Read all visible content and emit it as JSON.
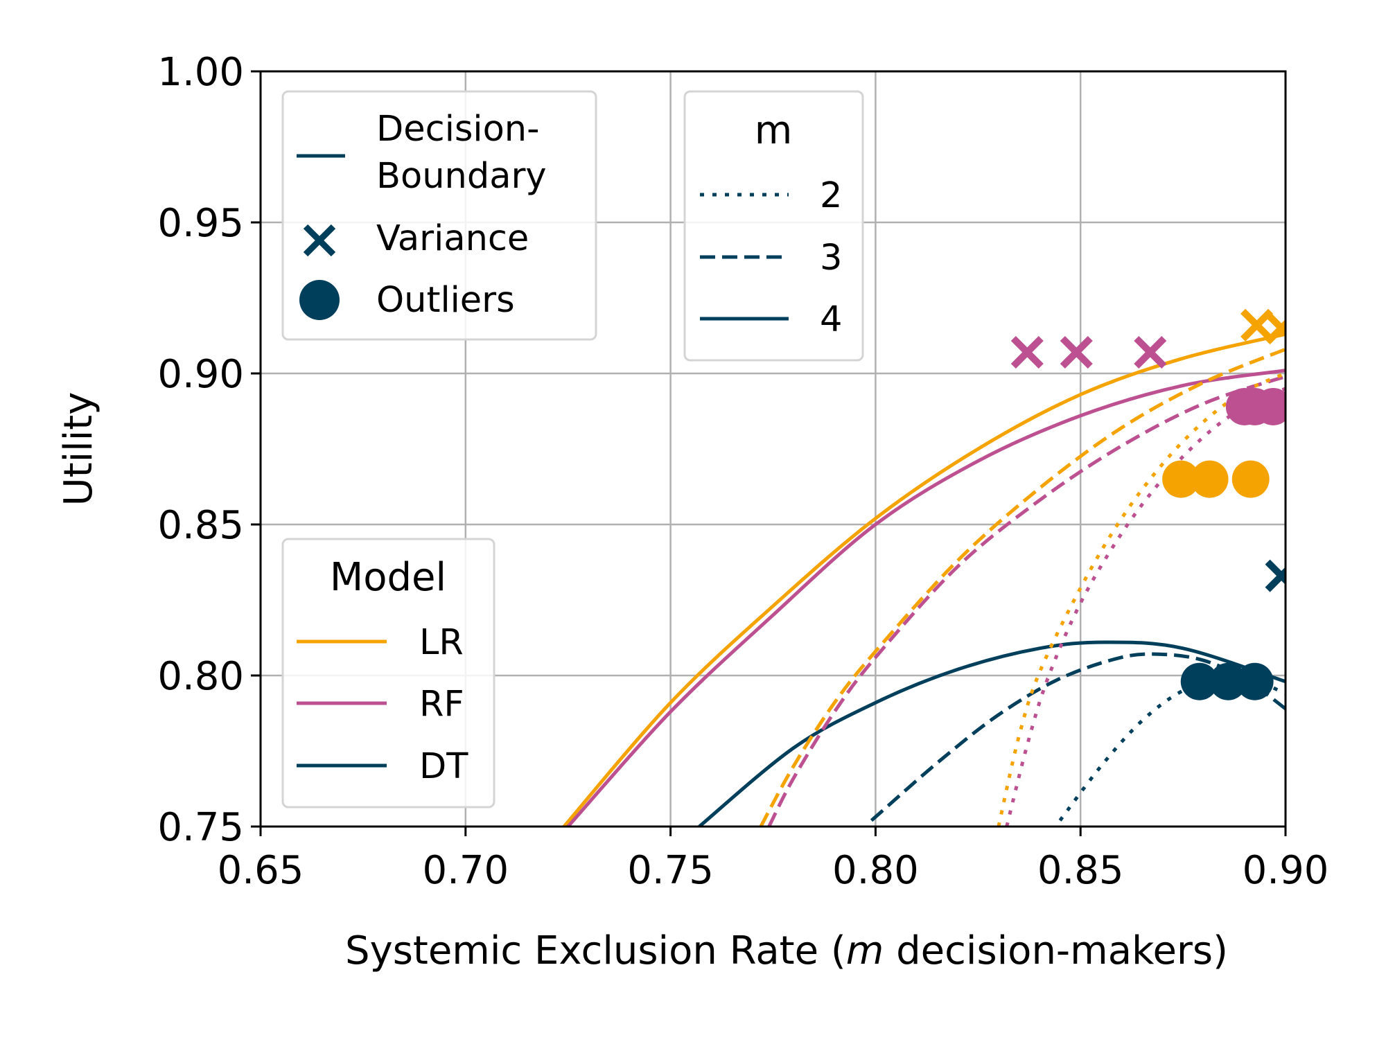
{
  "chart_data": {
    "type": "line",
    "xlabel": "Systemic Exclusion Rate (m decision-makers)",
    "xlabel_parts": {
      "before": "Systemic Exclusion Rate (",
      "italic": "m",
      "after": " decision-makers)"
    },
    "ylabel": "Utility",
    "xlim": [
      0.65,
      0.9
    ],
    "ylim": [
      0.75,
      1.0
    ],
    "xticks": [
      "0.65",
      "0.70",
      "0.75",
      "0.80",
      "0.85",
      "0.90"
    ],
    "yticks": [
      "0.75",
      "0.80",
      "0.85",
      "0.90",
      "0.95",
      "1.00"
    ],
    "grid": true,
    "colors": {
      "LR": "#f5a300",
      "RF": "#bc5090",
      "DT": "#003f5c",
      "grid": "#b0b0b0"
    },
    "legend_method": {
      "placement": "top-left",
      "entries": [
        {
          "label_lines": [
            "Decision-",
            "Boundary"
          ],
          "marker": "line"
        },
        {
          "label_lines": [
            "Variance"
          ],
          "marker": "x"
        },
        {
          "label_lines": [
            "Outliers"
          ],
          "marker": "circle"
        }
      ]
    },
    "legend_m": {
      "title": "m",
      "placement": "top-center",
      "entries": [
        {
          "label": "2",
          "style": "dotted"
        },
        {
          "label": "3",
          "style": "dashed"
        },
        {
          "label": "4",
          "style": "solid"
        }
      ]
    },
    "legend_model": {
      "title": "Model",
      "placement": "lower-left",
      "entries": [
        {
          "label": "LR",
          "color_key": "LR"
        },
        {
          "label": "RF",
          "color_key": "RF"
        },
        {
          "label": "DT",
          "color_key": "DT"
        }
      ]
    },
    "curves": [
      {
        "model": "LR",
        "m": 4,
        "style": "solid",
        "points": [
          [
            0.724,
            0.75
          ],
          [
            0.75,
            0.791
          ],
          [
            0.775,
            0.823
          ],
          [
            0.8,
            0.852
          ],
          [
            0.825,
            0.875
          ],
          [
            0.85,
            0.893
          ],
          [
            0.875,
            0.905
          ],
          [
            0.9,
            0.913
          ]
        ]
      },
      {
        "model": "RF",
        "m": 4,
        "style": "solid",
        "points": [
          [
            0.725,
            0.75
          ],
          [
            0.75,
            0.788
          ],
          [
            0.775,
            0.82
          ],
          [
            0.8,
            0.85
          ],
          [
            0.825,
            0.871
          ],
          [
            0.85,
            0.886
          ],
          [
            0.875,
            0.896
          ],
          [
            0.9,
            0.901
          ]
        ]
      },
      {
        "model": "DT",
        "m": 4,
        "style": "solid",
        "points": [
          [
            0.757,
            0.75
          ],
          [
            0.78,
            0.776
          ],
          [
            0.8,
            0.791
          ],
          [
            0.82,
            0.802
          ],
          [
            0.84,
            0.809
          ],
          [
            0.856,
            0.811
          ],
          [
            0.875,
            0.809
          ],
          [
            0.9,
            0.798
          ]
        ]
      },
      {
        "model": "LR",
        "m": 3,
        "style": "dashed",
        "points": [
          [
            0.772,
            0.75
          ],
          [
            0.78,
            0.77
          ],
          [
            0.79,
            0.791
          ],
          [
            0.8,
            0.808
          ],
          [
            0.82,
            0.838
          ],
          [
            0.84,
            0.862
          ],
          [
            0.86,
            0.882
          ],
          [
            0.88,
            0.897
          ],
          [
            0.9,
            0.908
          ]
        ]
      },
      {
        "model": "RF",
        "m": 3,
        "style": "dashed",
        "points": [
          [
            0.774,
            0.75
          ],
          [
            0.78,
            0.766
          ],
          [
            0.79,
            0.788
          ],
          [
            0.8,
            0.806
          ],
          [
            0.82,
            0.836
          ],
          [
            0.84,
            0.858
          ],
          [
            0.86,
            0.876
          ],
          [
            0.88,
            0.89
          ],
          [
            0.9,
            0.899
          ]
        ]
      },
      {
        "model": "DT",
        "m": 3,
        "style": "dashed",
        "points": [
          [
            0.799,
            0.752
          ],
          [
            0.815,
            0.771
          ],
          [
            0.83,
            0.787
          ],
          [
            0.845,
            0.799
          ],
          [
            0.86,
            0.806
          ],
          [
            0.87,
            0.807
          ],
          [
            0.88,
            0.805
          ],
          [
            0.89,
            0.799
          ],
          [
            0.9,
            0.789
          ]
        ]
      },
      {
        "model": "LR",
        "m": 2,
        "style": "dotted",
        "points": [
          [
            0.83,
            0.75
          ],
          [
            0.835,
            0.78
          ],
          [
            0.84,
            0.801
          ],
          [
            0.85,
            0.829
          ],
          [
            0.86,
            0.852
          ],
          [
            0.87,
            0.87
          ],
          [
            0.88,
            0.884
          ],
          [
            0.89,
            0.894
          ],
          [
            0.9,
            0.9
          ]
        ]
      },
      {
        "model": "RF",
        "m": 2,
        "style": "dotted",
        "points": [
          [
            0.832,
            0.75
          ],
          [
            0.837,
            0.777
          ],
          [
            0.842,
            0.799
          ],
          [
            0.85,
            0.824
          ],
          [
            0.86,
            0.847
          ],
          [
            0.87,
            0.865
          ],
          [
            0.88,
            0.879
          ],
          [
            0.89,
            0.889
          ],
          [
            0.9,
            0.895
          ]
        ]
      },
      {
        "model": "DT",
        "m": 2,
        "style": "dotted",
        "points": [
          [
            0.845,
            0.752
          ],
          [
            0.855,
            0.77
          ],
          [
            0.865,
            0.785
          ],
          [
            0.875,
            0.795
          ],
          [
            0.885,
            0.799
          ],
          [
            0.893,
            0.798
          ],
          [
            0.9,
            0.794
          ]
        ]
      }
    ],
    "variance_points": [
      {
        "model": "RF",
        "x": 0.837,
        "y": 0.907
      },
      {
        "model": "RF",
        "x": 0.849,
        "y": 0.907
      },
      {
        "model": "RF",
        "x": 0.867,
        "y": 0.907
      },
      {
        "model": "LR",
        "x": 0.893,
        "y": 0.916
      },
      {
        "model": "LR",
        "x": 0.899,
        "y": 0.915
      },
      {
        "model": "DT",
        "x": 0.899,
        "y": 0.833
      }
    ],
    "outlier_points": [
      {
        "model": "LR",
        "x": 0.8745,
        "y": 0.865
      },
      {
        "model": "LR",
        "x": 0.8815,
        "y": 0.865
      },
      {
        "model": "LR",
        "x": 0.8915,
        "y": 0.865
      },
      {
        "model": "RF",
        "x": 0.89,
        "y": 0.889
      },
      {
        "model": "RF",
        "x": 0.8925,
        "y": 0.889
      },
      {
        "model": "RF",
        "x": 0.897,
        "y": 0.889
      },
      {
        "model": "DT",
        "x": 0.879,
        "y": 0.798
      },
      {
        "model": "DT",
        "x": 0.886,
        "y": 0.798
      },
      {
        "model": "DT",
        "x": 0.8925,
        "y": 0.798
      }
    ]
  }
}
